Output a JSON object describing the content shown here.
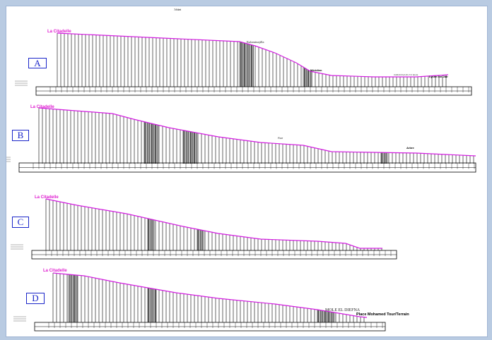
{
  "sheet": {
    "top_mark": "7/Mét",
    "line_color": "#d21ce0",
    "label_color": "#1a25c9"
  },
  "profiles": [
    {
      "label": "A",
      "start": "La Citadelle",
      "annotations": [
        "Kalaminajilla",
        "Méridien",
        "CARACOLA DU N I ELLE",
        "Lycée ibn Jbir"
      ]
    },
    {
      "label": "B",
      "start": "La Citadelle",
      "annotations": [
        "Rue",
        "Arbre"
      ]
    },
    {
      "label": "C",
      "start": "La Citadelle",
      "annotations": []
    },
    {
      "label": "D",
      "start": "La Citadelle",
      "annotations": [
        "MOLE EL DIEFNA",
        "Place Mohamed Tour/Terrain"
      ]
    }
  ]
}
